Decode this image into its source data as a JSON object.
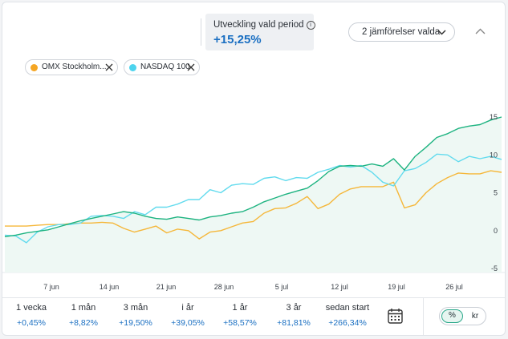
{
  "header": {
    "development_label": "Utveckling vald period",
    "development_value": "+15,25%",
    "compare_label": "2 jämförelser valda"
  },
  "chips": [
    {
      "label": "OMX Stockholm...",
      "color": "#f5a623"
    },
    {
      "label": "NASDAQ 100",
      "color": "#4dd4ee"
    }
  ],
  "periods": [
    {
      "label": "1 vecka",
      "value": "+0,45%"
    },
    {
      "label": "1 mån",
      "value": "+8,82%"
    },
    {
      "label": "3 mån",
      "value": "+19,50%"
    },
    {
      "label": "i år",
      "value": "+39,05%"
    },
    {
      "label": "1 år",
      "value": "+58,57%"
    },
    {
      "label": "3 år",
      "value": "+81,81%"
    },
    {
      "label": "sedan start",
      "value": "+266,34%"
    }
  ],
  "toggle": {
    "percent_label": "%",
    "kr_label": "kr",
    "selected": "%"
  },
  "colors": {
    "main": "#1db380",
    "omx": "#f5b73a",
    "nasdaq": "#62dbee",
    "accent": "#1a6fc2"
  },
  "chart_data": {
    "type": "line",
    "ylim": [
      -5,
      15
    ],
    "yticks": [
      -5,
      0,
      5,
      10,
      15
    ],
    "xticks": [
      "7 jun",
      "14 jun",
      "21 jun",
      "28 jun",
      "5 jul",
      "12 jul",
      "19 jul",
      "26 jul"
    ],
    "series": [
      {
        "key": "main",
        "color_key": "main",
        "fill": true,
        "values": [
          -0.8,
          -0.6,
          -0.3,
          -0.1,
          0.1,
          0.5,
          0.9,
          1.3,
          1.6,
          1.9,
          2.2,
          2.5,
          2.3,
          1.9,
          1.6,
          1.5,
          1.8,
          1.6,
          1.4,
          1.8,
          2.0,
          2.3,
          2.5,
          3.1,
          3.8,
          4.3,
          4.8,
          5.2,
          5.6,
          6.6,
          7.8,
          8.5,
          8.6,
          8.5,
          8.8,
          8.5,
          9.5,
          8.0,
          9.8,
          11.0,
          12.3,
          12.8,
          13.5,
          13.8,
          14.0,
          14.6,
          15.0
        ]
      },
      {
        "key": "omx",
        "name": "OMX Stockholm...",
        "color_key": "omx",
        "values": [
          0.6,
          0.6,
          0.6,
          0.7,
          0.8,
          0.8,
          0.9,
          1.0,
          1.0,
          1.1,
          1.0,
          0.3,
          -0.2,
          0.2,
          0.6,
          -0.3,
          0.2,
          0.0,
          -1.1,
          -0.2,
          0.0,
          0.5,
          1.0,
          1.2,
          2.3,
          2.9,
          3.0,
          3.6,
          4.5,
          2.9,
          3.5,
          4.8,
          5.5,
          5.8,
          5.8,
          5.8,
          6.4,
          3.0,
          3.4,
          5.0,
          6.2,
          7.0,
          7.6,
          7.5,
          7.5,
          7.9,
          7.7
        ]
      },
      {
        "key": "nasdaq",
        "name": "NASDAQ 100",
        "color_key": "nasdaq",
        "values": [
          -0.6,
          -0.7,
          -1.6,
          -0.2,
          0.5,
          0.8,
          0.8,
          1.0,
          1.9,
          2.0,
          1.9,
          1.6,
          2.5,
          2.1,
          3.1,
          3.1,
          3.5,
          4.1,
          4.1,
          5.4,
          5.0,
          6.0,
          6.2,
          6.1,
          6.9,
          7.1,
          6.6,
          7.0,
          6.9,
          7.7,
          8.1,
          8.6,
          8.4,
          8.6,
          7.7,
          6.4,
          5.9,
          7.9,
          8.2,
          9.0,
          10.1,
          10.0,
          9.1,
          9.8,
          9.5,
          9.8,
          9.4
        ]
      }
    ]
  }
}
